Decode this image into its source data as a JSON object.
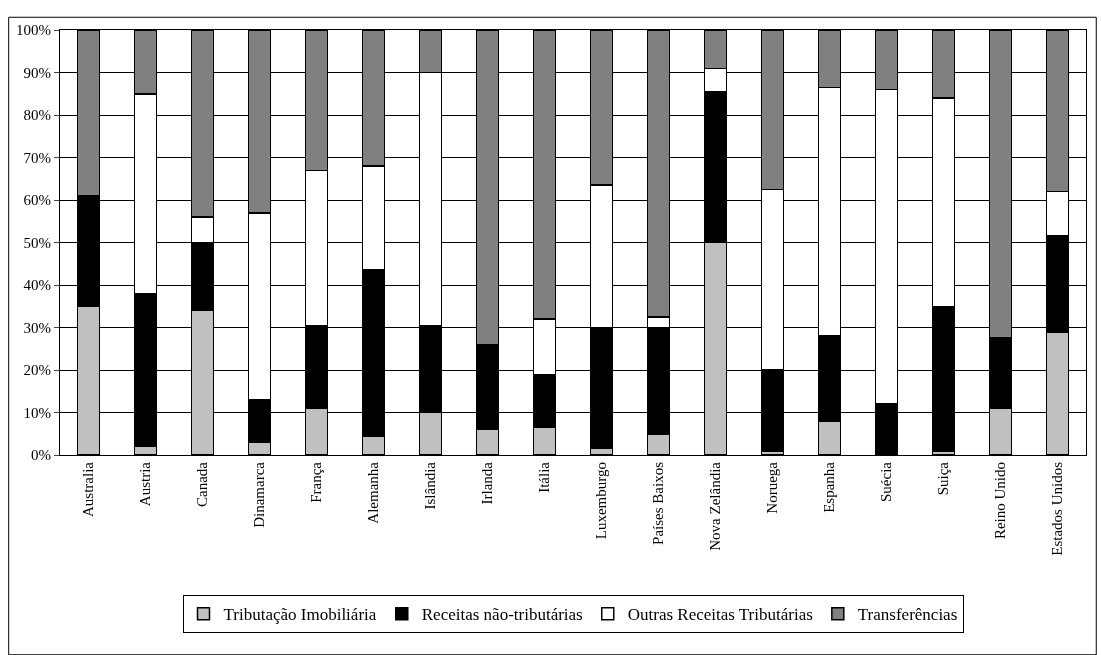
{
  "chart_data": {
    "type": "bar",
    "stacked": true,
    "categories": [
      "Australia",
      "Austria",
      "Canada",
      "Dinamarca",
      "França",
      "Alemanha",
      "Islândia",
      "Irlanda",
      "Itália",
      "Luxemburgo",
      "Países Baixos",
      "Nova Zelândia",
      "Noruega",
      "Espanha",
      "Suécia",
      "Suiça",
      "Reino Unido",
      "Estados Unidos"
    ],
    "series": [
      {
        "name": "Tributação Imobiliária",
        "color": "#c0c0c0",
        "values": [
          35,
          2,
          34,
          3,
          11,
          4.5,
          10,
          6,
          6.5,
          1.5,
          5,
          50,
          1,
          8,
          0,
          1,
          11,
          29
        ]
      },
      {
        "name": "Receitas não-tributárias",
        "color": "#000000",
        "values": [
          26,
          36,
          16,
          10,
          19.5,
          39,
          20.5,
          20,
          12.5,
          28.5,
          25,
          35.5,
          19,
          20,
          12,
          34,
          16.5,
          22.5
        ]
      },
      {
        "name": "Outras Receitas Tributárias",
        "color": "#ffffff",
        "values": [
          0,
          47,
          6,
          44,
          36.5,
          24.5,
          59.5,
          0,
          13,
          33.5,
          2.5,
          5.5,
          42.5,
          58.5,
          74,
          49,
          0,
          10.5
        ]
      },
      {
        "name": "Transferências",
        "color": "#808080",
        "values": [
          39,
          15,
          44,
          43,
          33,
          32,
          10,
          74,
          68,
          36.5,
          67.5,
          9,
          37.5,
          13.5,
          14,
          16,
          72.5,
          38
        ]
      }
    ],
    "ylim": [
      0,
      100
    ],
    "yticks": [
      {
        "value": 0,
        "label": "0%"
      },
      {
        "value": 10,
        "label": "10%"
      },
      {
        "value": 20,
        "label": "20%"
      },
      {
        "value": 30,
        "label": "30%"
      },
      {
        "value": 40,
        "label": "40%"
      },
      {
        "value": 50,
        "label": "50%"
      },
      {
        "value": 60,
        "label": "60%"
      },
      {
        "value": 70,
        "label": "70%"
      },
      {
        "value": 80,
        "label": "80%"
      },
      {
        "value": 90,
        "label": "90%"
      },
      {
        "value": 100,
        "label": "100%"
      }
    ],
    "grid": "y",
    "legend": "bottom"
  }
}
